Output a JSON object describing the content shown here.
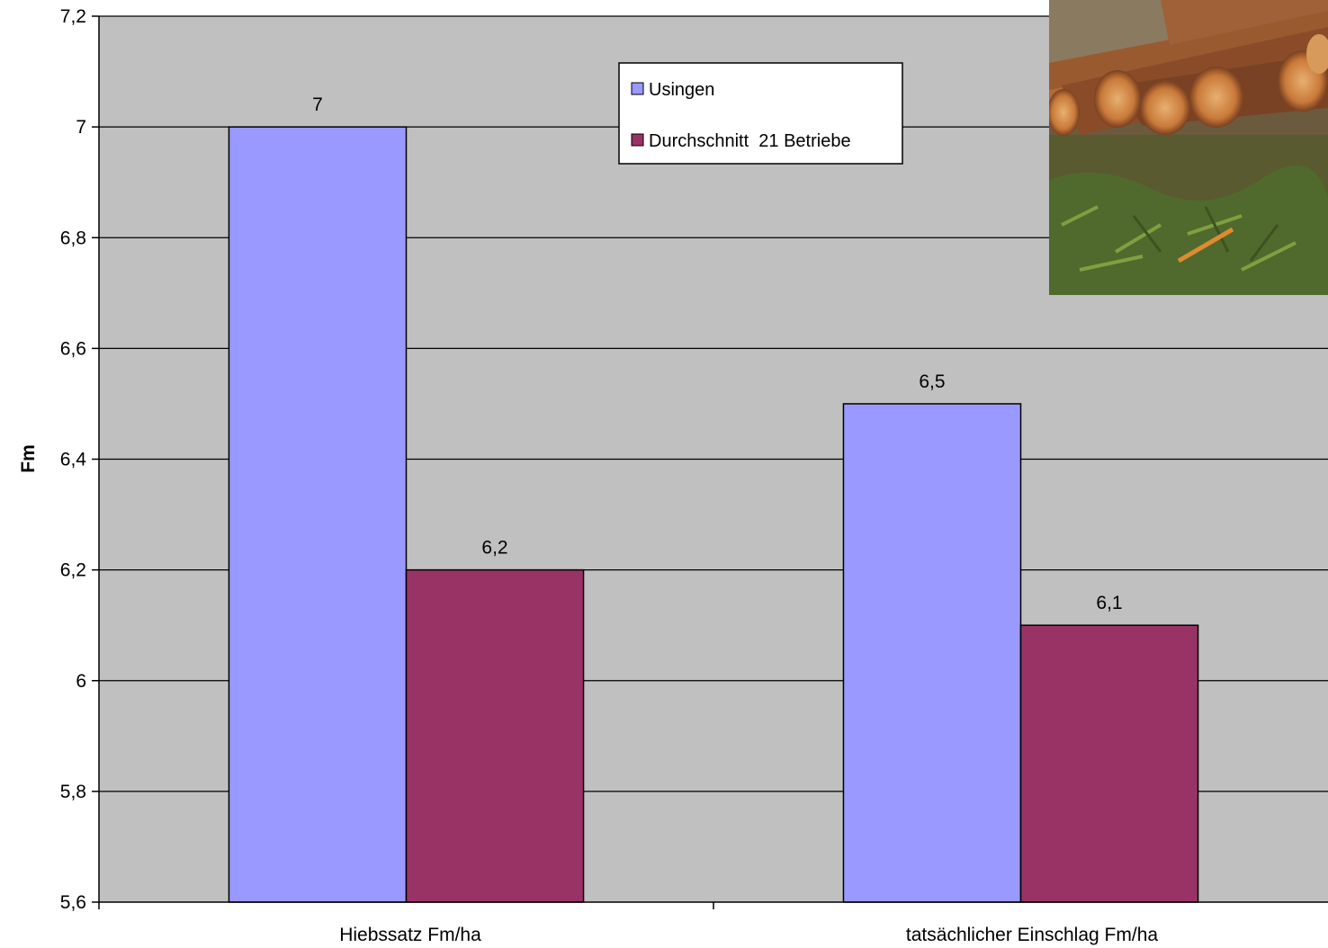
{
  "chart_data": {
    "type": "bar",
    "categories": [
      "Hiebssatz Fm/ha",
      "tatsächlicher Einschlag Fm/ha"
    ],
    "series": [
      {
        "name": "Usingen",
        "values": [
          7,
          6.5
        ],
        "labels": [
          "7",
          "6,5"
        ]
      },
      {
        "name": "Durchschnitt  21 Betriebe",
        "values": [
          6.2,
          6.1
        ],
        "labels": [
          "6,2",
          "6,1"
        ]
      }
    ],
    "ylabel": "Fm",
    "ylim": [
      5.6,
      7.2
    ],
    "yticks": [
      5.6,
      5.8,
      6,
      6.2,
      6.4,
      6.6,
      6.8,
      7,
      7.2
    ],
    "ytick_labels": [
      "5,6",
      "5,8",
      "6",
      "6,2",
      "6,4",
      "6,6",
      "6,8",
      "7",
      "7,2"
    ],
    "grid": true,
    "legend_position": "top-center",
    "colors": {
      "Usingen": "#9999ff",
      "Durchschnitt  21 Betriebe": "#993366",
      "plot_background": "#c0c0c0"
    }
  },
  "photo": {
    "subject": "felled-logs-photo"
  }
}
